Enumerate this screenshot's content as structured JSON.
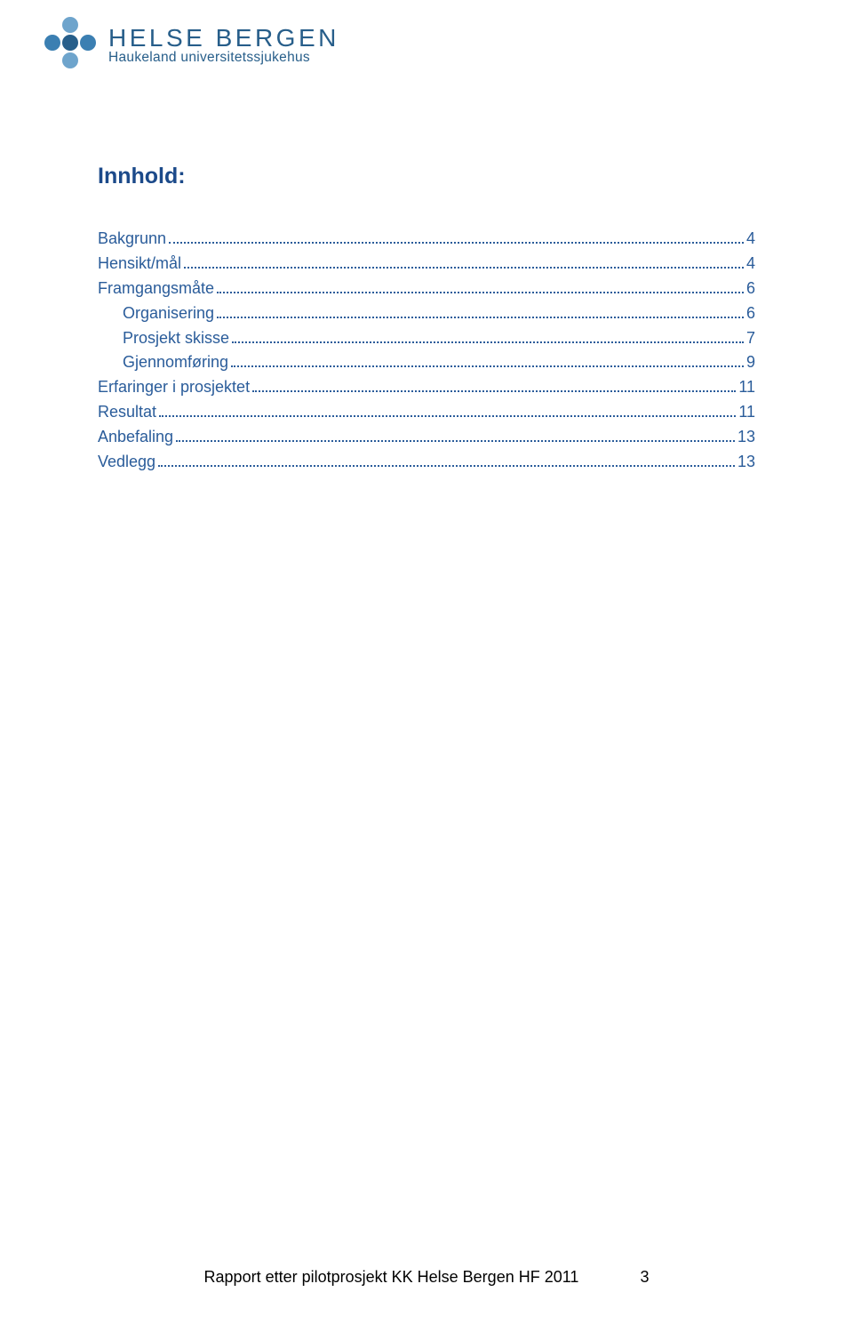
{
  "logo": {
    "main": "HELSE BERGEN",
    "sub": "Haukeland universitetssjukehus",
    "colors": {
      "brand_blue": "#275e8a",
      "light_blue": "#6ea4cc",
      "dot_blue": "#3b7fb2"
    }
  },
  "title": "Innhold:",
  "toc_color": "#2a5c9a",
  "toc": [
    {
      "label": "Bakgrunn",
      "page": "4",
      "indent": false
    },
    {
      "label": "Hensikt/mål",
      "page": "4",
      "indent": false
    },
    {
      "label": "Framgangsmåte",
      "page": "6",
      "indent": false
    },
    {
      "label": "Organisering",
      "page": "6",
      "indent": true
    },
    {
      "label": "Prosjekt skisse",
      "page": "7",
      "indent": true
    },
    {
      "label": "Gjennomføring",
      "page": "9",
      "indent": true
    },
    {
      "label": "Erfaringer i prosjektet",
      "page": "11",
      "indent": false
    },
    {
      "label": "Resultat",
      "page": "11",
      "indent": false
    },
    {
      "label": "Anbefaling",
      "page": "13",
      "indent": false
    },
    {
      "label": "Vedlegg",
      "page": "13",
      "indent": false
    }
  ],
  "footer": {
    "text": "Rapport etter pilotprosjekt KK Helse Bergen HF 2011",
    "page_number": "3"
  }
}
